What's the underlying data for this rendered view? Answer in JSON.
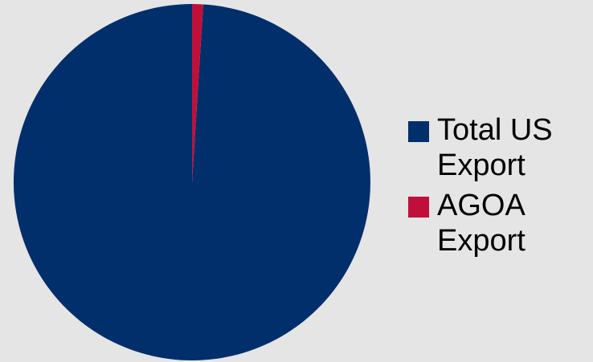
{
  "chart_data": {
    "type": "pie",
    "title": "",
    "series": [
      {
        "values": [
          99,
          1
        ]
      }
    ],
    "slices": [
      {
        "label": "Total US Export",
        "value": 99,
        "color": "#002f6c"
      },
      {
        "label": "AGOA Export",
        "value": 1,
        "color": "#c0103a"
      }
    ],
    "legend_position": "right",
    "start_angle": "top",
    "direction": "counterclockwise"
  },
  "colors": {
    "background": "#e5e5e5"
  }
}
